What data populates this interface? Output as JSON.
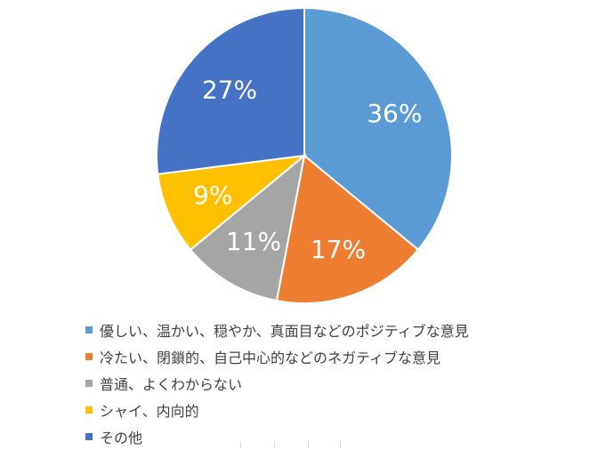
{
  "chart_data": {
    "type": "pie",
    "title": "",
    "slices": [
      {
        "label": "優しい、温かい、穏やか、真面目などのポジティブな意見",
        "value": 36,
        "display": "36%",
        "color": "#5b9bd5"
      },
      {
        "label": "冷たい、閉鎖的、自己中心的などのネガティブな意見",
        "value": 17,
        "display": "17%",
        "color": "#ed7d31"
      },
      {
        "label": "普通、よくわからない",
        "value": 11,
        "display": "11%",
        "color": "#a5a5a5"
      },
      {
        "label": "シャイ、内向的",
        "value": 9,
        "display": "9%",
        "color": "#ffc000"
      },
      {
        "label": "その他",
        "value": 27,
        "display": "27%",
        "color": "#4472c4"
      }
    ],
    "legend": {
      "placement": "bottom-left"
    }
  }
}
